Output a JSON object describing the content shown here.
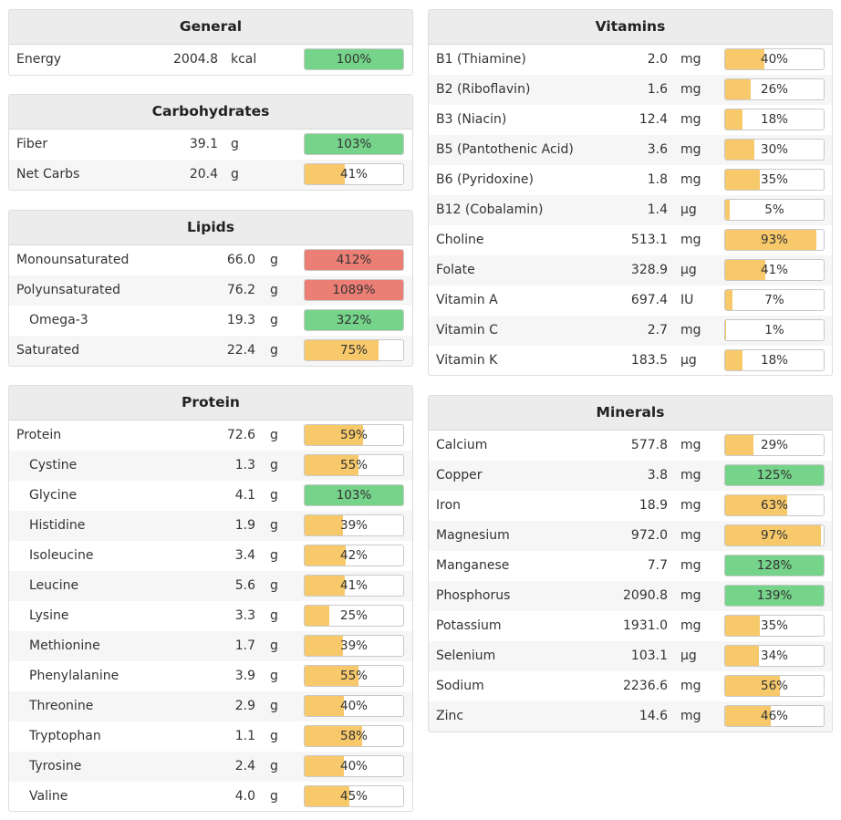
{
  "colors": {
    "ok": "#76d38a",
    "low": "#f7c96a",
    "high": "#ec7f75"
  },
  "sections": [
    {
      "id": "general",
      "title": "General",
      "column": "left",
      "rows": [
        {
          "name": "Energy",
          "value": "2004.8",
          "unit": "kcal",
          "percent": 100,
          "label": "100%",
          "status": "ok",
          "indent": false
        }
      ]
    },
    {
      "id": "carbohydrates",
      "title": "Carbohydrates",
      "column": "left",
      "rows": [
        {
          "name": "Fiber",
          "value": "39.1",
          "unit": "g",
          "percent": 103,
          "label": "103%",
          "status": "ok",
          "indent": false
        },
        {
          "name": "Net Carbs",
          "value": "20.4",
          "unit": "g",
          "percent": 41,
          "label": "41%",
          "status": "low",
          "indent": false
        }
      ]
    },
    {
      "id": "lipids",
      "title": "Lipids",
      "column": "left",
      "rows": [
        {
          "name": "Monounsaturated",
          "value": "66.0",
          "unit": "g",
          "percent": 412,
          "label": "412%",
          "status": "high",
          "indent": false
        },
        {
          "name": "Polyunsaturated",
          "value": "76.2",
          "unit": "g",
          "percent": 1089,
          "label": "1089%",
          "status": "high",
          "indent": false
        },
        {
          "name": "Omega-3",
          "value": "19.3",
          "unit": "g",
          "percent": 322,
          "label": "322%",
          "status": "ok",
          "indent": true
        },
        {
          "name": "Saturated",
          "value": "22.4",
          "unit": "g",
          "percent": 75,
          "label": "75%",
          "status": "low",
          "indent": false
        }
      ]
    },
    {
      "id": "protein",
      "title": "Protein",
      "column": "left",
      "rows": [
        {
          "name": "Protein",
          "value": "72.6",
          "unit": "g",
          "percent": 59,
          "label": "59%",
          "status": "low",
          "indent": false
        },
        {
          "name": "Cystine",
          "value": "1.3",
          "unit": "g",
          "percent": 55,
          "label": "55%",
          "status": "low",
          "indent": true
        },
        {
          "name": "Glycine",
          "value": "4.1",
          "unit": "g",
          "percent": 103,
          "label": "103%",
          "status": "ok",
          "indent": true
        },
        {
          "name": "Histidine",
          "value": "1.9",
          "unit": "g",
          "percent": 39,
          "label": "39%",
          "status": "low",
          "indent": true
        },
        {
          "name": "Isoleucine",
          "value": "3.4",
          "unit": "g",
          "percent": 42,
          "label": "42%",
          "status": "low",
          "indent": true
        },
        {
          "name": "Leucine",
          "value": "5.6",
          "unit": "g",
          "percent": 41,
          "label": "41%",
          "status": "low",
          "indent": true
        },
        {
          "name": "Lysine",
          "value": "3.3",
          "unit": "g",
          "percent": 25,
          "label": "25%",
          "status": "low",
          "indent": true
        },
        {
          "name": "Methionine",
          "value": "1.7",
          "unit": "g",
          "percent": 39,
          "label": "39%",
          "status": "low",
          "indent": true
        },
        {
          "name": "Phenylalanine",
          "value": "3.9",
          "unit": "g",
          "percent": 55,
          "label": "55%",
          "status": "low",
          "indent": true
        },
        {
          "name": "Threonine",
          "value": "2.9",
          "unit": "g",
          "percent": 40,
          "label": "40%",
          "status": "low",
          "indent": true
        },
        {
          "name": "Tryptophan",
          "value": "1.1",
          "unit": "g",
          "percent": 58,
          "label": "58%",
          "status": "low",
          "indent": true
        },
        {
          "name": "Tyrosine",
          "value": "2.4",
          "unit": "g",
          "percent": 40,
          "label": "40%",
          "status": "low",
          "indent": true
        },
        {
          "name": "Valine",
          "value": "4.0",
          "unit": "g",
          "percent": 45,
          "label": "45%",
          "status": "low",
          "indent": true
        }
      ]
    },
    {
      "id": "vitamins",
      "title": "Vitamins",
      "column": "right",
      "rows": [
        {
          "name": "B1 (Thiamine)",
          "value": "2.0",
          "unit": "mg",
          "percent": 40,
          "label": "40%",
          "status": "low",
          "indent": false
        },
        {
          "name": "B2 (Riboflavin)",
          "value": "1.6",
          "unit": "mg",
          "percent": 26,
          "label": "26%",
          "status": "low",
          "indent": false
        },
        {
          "name": "B3 (Niacin)",
          "value": "12.4",
          "unit": "mg",
          "percent": 18,
          "label": "18%",
          "status": "low",
          "indent": false
        },
        {
          "name": "B5 (Pantothenic Acid)",
          "value": "3.6",
          "unit": "mg",
          "percent": 30,
          "label": "30%",
          "status": "low",
          "indent": false
        },
        {
          "name": "B6 (Pyridoxine)",
          "value": "1.8",
          "unit": "mg",
          "percent": 35,
          "label": "35%",
          "status": "low",
          "indent": false
        },
        {
          "name": "B12 (Cobalamin)",
          "value": "1.4",
          "unit": "µg",
          "percent": 5,
          "label": "5%",
          "status": "low",
          "indent": false
        },
        {
          "name": "Choline",
          "value": "513.1",
          "unit": "mg",
          "percent": 93,
          "label": "93%",
          "status": "low",
          "indent": false
        },
        {
          "name": "Folate",
          "value": "328.9",
          "unit": "µg",
          "percent": 41,
          "label": "41%",
          "status": "low",
          "indent": false
        },
        {
          "name": "Vitamin A",
          "value": "697.4",
          "unit": "IU",
          "percent": 7,
          "label": "7%",
          "status": "low",
          "indent": false
        },
        {
          "name": "Vitamin C",
          "value": "2.7",
          "unit": "mg",
          "percent": 1,
          "label": "1%",
          "status": "low",
          "indent": false
        },
        {
          "name": "Vitamin K",
          "value": "183.5",
          "unit": "µg",
          "percent": 18,
          "label": "18%",
          "status": "low",
          "indent": false
        }
      ]
    },
    {
      "id": "minerals",
      "title": "Minerals",
      "column": "right",
      "rows": [
        {
          "name": "Calcium",
          "value": "577.8",
          "unit": "mg",
          "percent": 29,
          "label": "29%",
          "status": "low",
          "indent": false
        },
        {
          "name": "Copper",
          "value": "3.8",
          "unit": "mg",
          "percent": 125,
          "label": "125%",
          "status": "ok",
          "indent": false
        },
        {
          "name": "Iron",
          "value": "18.9",
          "unit": "mg",
          "percent": 63,
          "label": "63%",
          "status": "low",
          "indent": false
        },
        {
          "name": "Magnesium",
          "value": "972.0",
          "unit": "mg",
          "percent": 97,
          "label": "97%",
          "status": "low",
          "indent": false
        },
        {
          "name": "Manganese",
          "value": "7.7",
          "unit": "mg",
          "percent": 128,
          "label": "128%",
          "status": "ok",
          "indent": false
        },
        {
          "name": "Phosphorus",
          "value": "2090.8",
          "unit": "mg",
          "percent": 139,
          "label": "139%",
          "status": "ok",
          "indent": false
        },
        {
          "name": "Potassium",
          "value": "1931.0",
          "unit": "mg",
          "percent": 35,
          "label": "35%",
          "status": "low",
          "indent": false
        },
        {
          "name": "Selenium",
          "value": "103.1",
          "unit": "µg",
          "percent": 34,
          "label": "34%",
          "status": "low",
          "indent": false
        },
        {
          "name": "Sodium",
          "value": "2236.6",
          "unit": "mg",
          "percent": 56,
          "label": "56%",
          "status": "low",
          "indent": false
        },
        {
          "name": "Zinc",
          "value": "14.6",
          "unit": "mg",
          "percent": 46,
          "label": "46%",
          "status": "low",
          "indent": false
        }
      ]
    }
  ]
}
